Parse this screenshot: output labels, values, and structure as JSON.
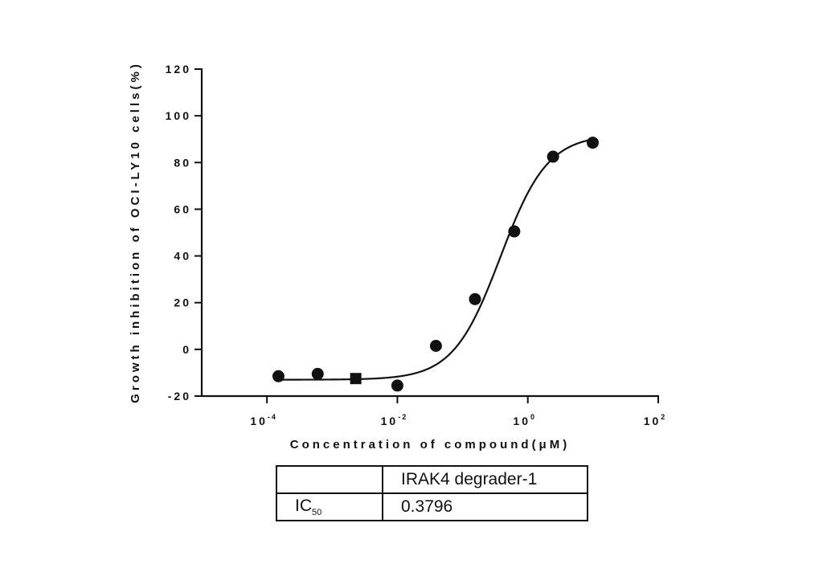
{
  "chart_data": {
    "type": "scatter",
    "ylabel": "Growth inhibition of OCI-LY10 cells(%)",
    "xlabel": "Concentration of compound(μM)",
    "xscale": "log10",
    "xlim": [
      1e-05,
      100
    ],
    "ylim": [
      -20,
      120
    ],
    "yticks": [
      "120",
      "100",
      "80",
      "60",
      "40",
      "20",
      "0",
      "-20"
    ],
    "xticks": [
      {
        "base": "10",
        "exp": "-4",
        "value": 0.0001
      },
      {
        "base": "10",
        "exp": "-2",
        "value": 0.01
      },
      {
        "base": "10",
        "exp": "0",
        "value": 1
      },
      {
        "base": "10",
        "exp": "2",
        "value": 100
      }
    ],
    "points": [
      {
        "x": 0.00015,
        "y": -11.5
      },
      {
        "x": 0.0006,
        "y": -10.5
      },
      {
        "x": 0.0023,
        "y": -12.5,
        "marker": "square"
      },
      {
        "x": 0.01,
        "y": -15.5
      },
      {
        "x": 0.039,
        "y": 1.5
      },
      {
        "x": 0.155,
        "y": 21.5
      },
      {
        "x": 0.62,
        "y": 50.5
      },
      {
        "x": 2.44,
        "y": 82.5
      },
      {
        "x": 9.9,
        "y": 88.5
      }
    ],
    "fit_curve": {
      "bottom": -13,
      "top": 92,
      "ic50": 0.3796,
      "hill": 1.2
    },
    "grid": false,
    "legend": "none"
  },
  "table": {
    "header": [
      "",
      "IRAK4 degrader-1"
    ],
    "row": {
      "label": "IC",
      "label_sub": "50",
      "value": "0.3796"
    }
  }
}
